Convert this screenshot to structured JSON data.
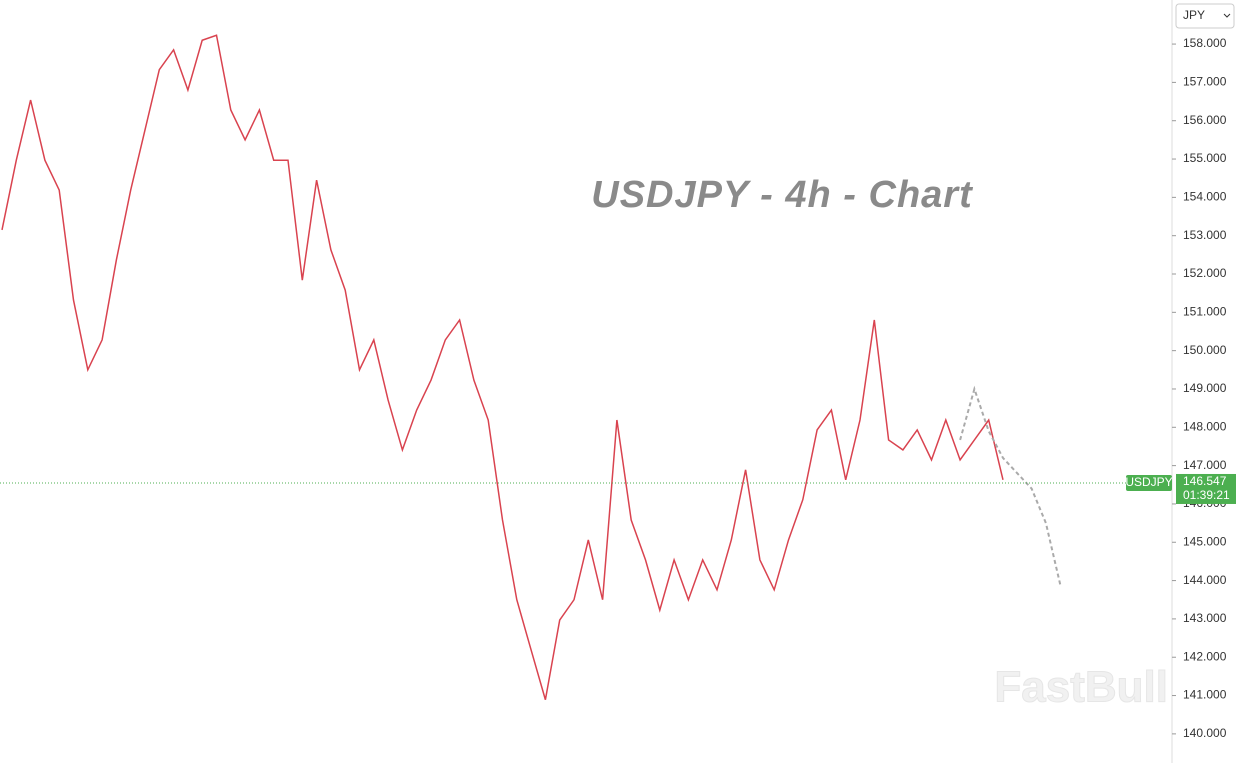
{
  "chart_data": {
    "type": "line",
    "title": "USDJPY - 4h - Chart",
    "watermark": "FastBull",
    "currency": "JPY",
    "symbol": "USDJPY",
    "last_price": 146.547,
    "countdown": "01:39:21",
    "last_price_color": "#4caf50",
    "ylim": [
      139.24,
      159.15
    ],
    "yticks": [
      {
        "value": 140,
        "label": "140.000"
      },
      {
        "value": 141,
        "label": "141.000"
      },
      {
        "value": 142,
        "label": "142.000"
      },
      {
        "value": 143,
        "label": "143.000"
      },
      {
        "value": 144,
        "label": "144.000"
      },
      {
        "value": 145,
        "label": "145.000"
      },
      {
        "value": 146,
        "label": "146.000"
      },
      {
        "value": 147,
        "label": "147.000"
      },
      {
        "value": 148,
        "label": "148.000"
      },
      {
        "value": 149,
        "label": "149.000"
      },
      {
        "value": 150,
        "label": "150.000"
      },
      {
        "value": 151,
        "label": "151.000"
      },
      {
        "value": 152,
        "label": "152.000"
      },
      {
        "value": 153,
        "label": "153.000"
      },
      {
        "value": 154,
        "label": "154.000"
      },
      {
        "value": 155,
        "label": "155.000"
      },
      {
        "value": 156,
        "label": "156.000"
      },
      {
        "value": 157,
        "label": "157.000"
      },
      {
        "value": 158,
        "label": "158.000"
      }
    ],
    "series": [
      {
        "color": "#d9434f",
        "values": [
          153.15,
          154.97,
          156.54,
          154.97,
          154.19,
          151.32,
          149.5,
          150.28,
          152.37,
          154.19,
          155.76,
          157.33,
          157.85,
          156.8,
          158.1,
          158.23,
          156.28,
          155.5,
          156.28,
          154.97,
          154.97,
          151.84,
          154.45,
          152.63,
          151.58,
          149.5,
          150.28,
          148.71,
          147.41,
          148.45,
          149.23,
          150.28,
          150.8,
          149.23,
          148.19,
          145.58,
          143.5,
          142.19,
          140.89,
          142.97,
          143.5,
          145.06,
          143.5,
          148.19,
          145.58,
          144.54,
          143.23,
          144.54,
          143.5,
          144.54,
          143.76,
          145.06,
          146.89,
          144.54,
          143.76,
          145.06,
          146.11,
          147.93,
          148.45,
          146.63,
          148.19,
          150.8,
          147.67,
          147.41,
          147.93,
          147.15,
          148.19,
          147.15,
          147.67,
          148.19,
          146.63,
          null,
          null,
          null,
          null
        ]
      },
      {
        "color": "#aaaaaa",
        "values": [
          null,
          null,
          null,
          null,
          null,
          null,
          null,
          null,
          null,
          null,
          null,
          null,
          null,
          null,
          null,
          null,
          null,
          null,
          null,
          null,
          null,
          null,
          null,
          null,
          null,
          null,
          null,
          null,
          null,
          null,
          null,
          null,
          null,
          null,
          null,
          null,
          null,
          null,
          null,
          null,
          null,
          null,
          null,
          null,
          null,
          null,
          null,
          null,
          null,
          null,
          null,
          null,
          null,
          null,
          null,
          null,
          null,
          null,
          null,
          null,
          null,
          null,
          null,
          null,
          null,
          null,
          null,
          147.67,
          149.0,
          147.9,
          147.2,
          146.8,
          146.4,
          145.5,
          143.9
        ]
      }
    ]
  }
}
